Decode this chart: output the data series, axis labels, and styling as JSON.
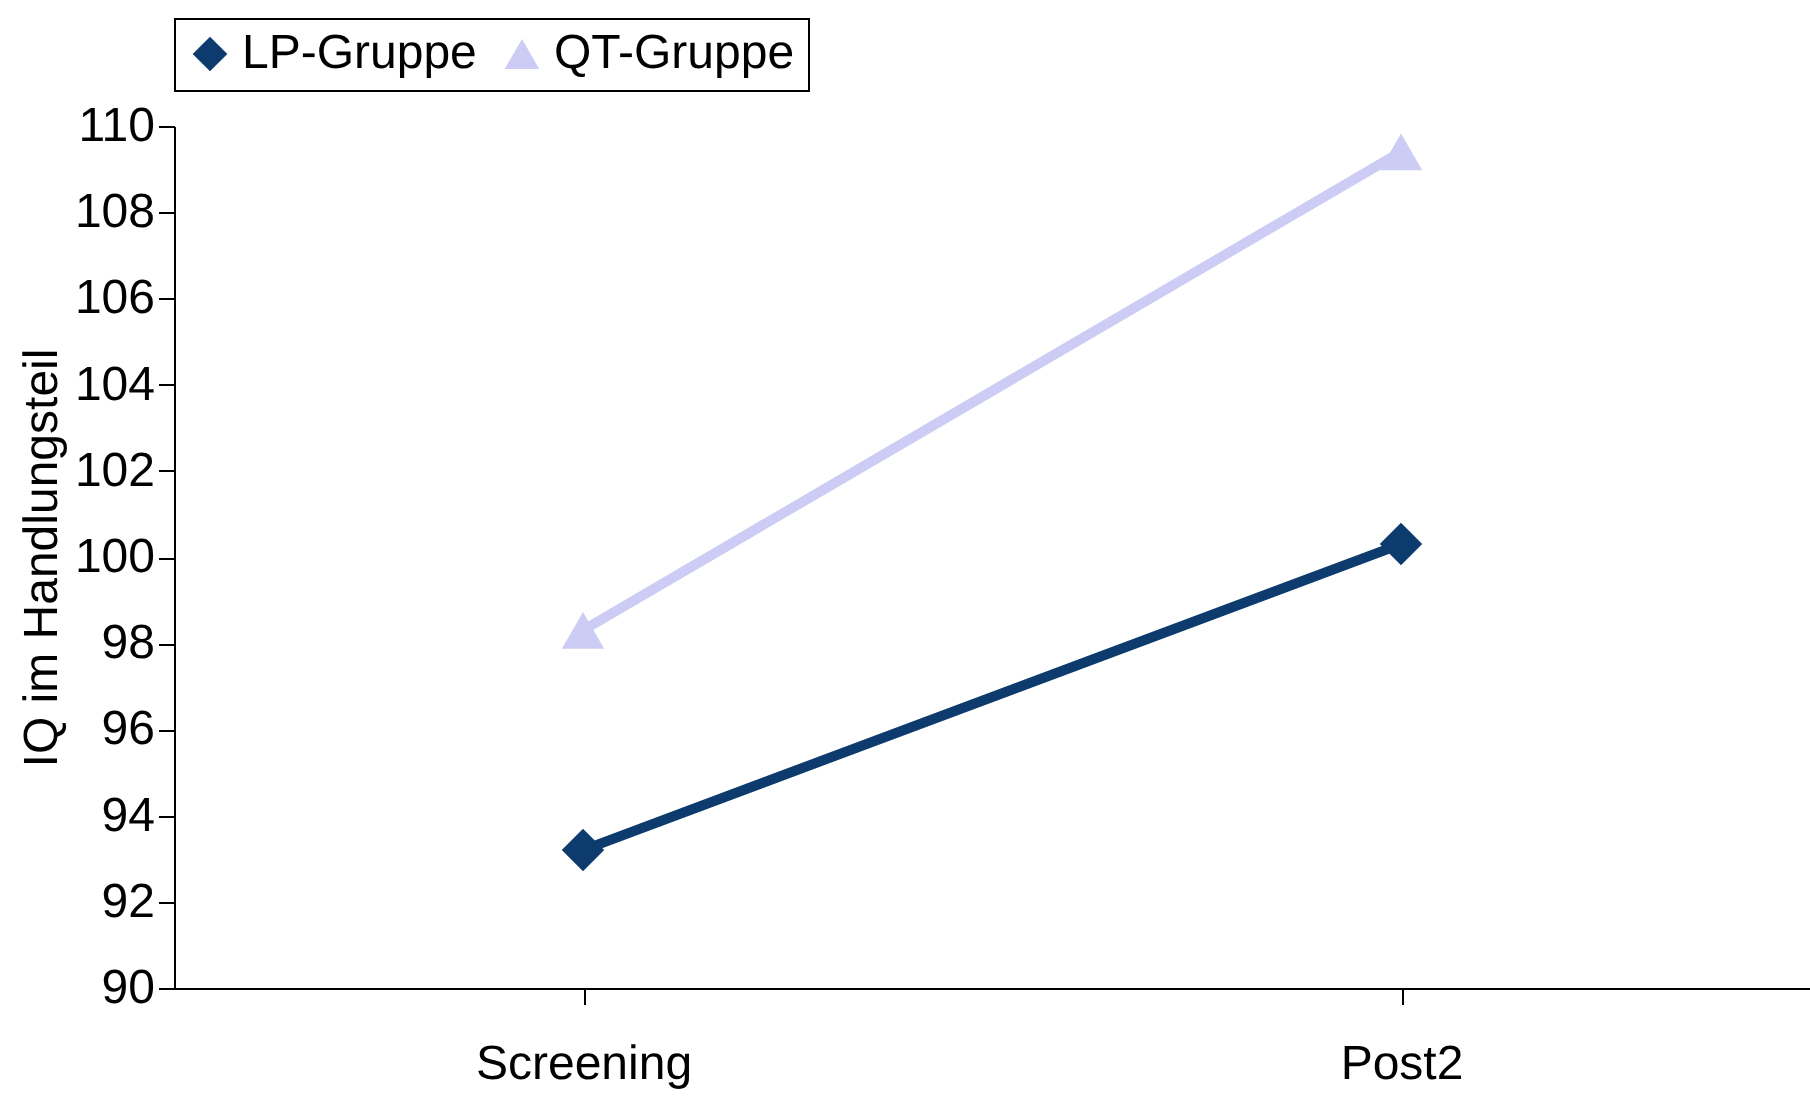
{
  "chart_data": {
    "type": "line",
    "ylabel": "IQ im Handlungsteil",
    "categories": [
      "Screening",
      "Post2"
    ],
    "series": [
      {
        "name": "LP-Gruppe",
        "color": "#0d3b6e",
        "values": [
          93.2,
          100.3
        ],
        "marker": "diamond"
      },
      {
        "name": "QT-Gruppe",
        "color": "#ccccf5",
        "values": [
          98.3,
          109.4
        ],
        "marker": "triangle"
      }
    ],
    "ylim": [
      90,
      110
    ],
    "yticks": [
      90,
      92,
      94,
      96,
      98,
      100,
      102,
      104,
      106,
      108,
      110
    ],
    "grid": false,
    "legend": "top",
    "line_style": "solid"
  }
}
